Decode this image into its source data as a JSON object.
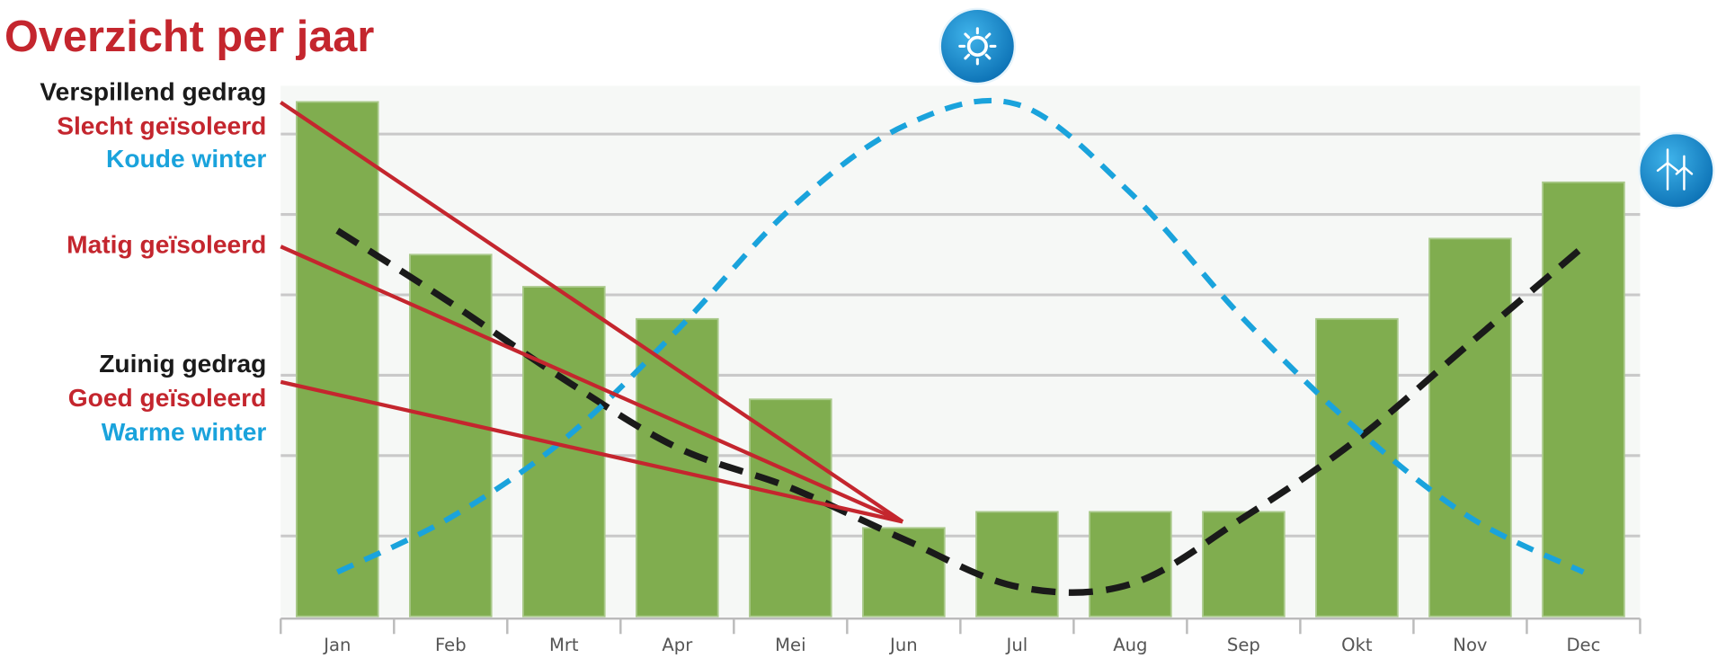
{
  "chart_data": {
    "type": "bar",
    "title": "Overzicht per jaar",
    "annotations": [
      {
        "text": "Verspillend gedrag",
        "color": "#1a1a1a"
      },
      {
        "text": "Slecht geïsoleerd",
        "color": "#c4262e"
      },
      {
        "text": "Koude winter",
        "color": "#1aa3dc"
      },
      {
        "text": "Matig geïsoleerd",
        "color": "#c4262e"
      },
      {
        "text": "Zuinig gedrag",
        "color": "#1a1a1a"
      },
      {
        "text": "Goed geïsoleerd",
        "color": "#c4262e"
      },
      {
        "text": "Warme winter",
        "color": "#1aa3dc"
      }
    ],
    "categories": [
      "Jan",
      "Feb",
      "Mrt",
      "Apr",
      "Mei",
      "Jun",
      "Jul",
      "Aug",
      "Sep",
      "Okt",
      "Nov",
      "Dec"
    ],
    "values": [
      6.4,
      4.5,
      4.1,
      3.7,
      2.7,
      1.1,
      1.3,
      1.3,
      1.3,
      3.7,
      4.7,
      5.4
    ],
    "color": "#80ad4f",
    "lines": [
      {
        "color": "#1a1a1a",
        "values": [
          4.8,
          3.9,
          2.95,
          2.1,
          1.6,
          0.96,
          0.37,
          0.4,
          1.23,
          2.2,
          3.4,
          4.6
        ]
      },
      {
        "color": "#1aa3dc",
        "values": [
          0.55,
          1.23,
          2.2,
          3.56,
          5.07,
          6.1,
          6.37,
          5.27,
          3.7,
          2.33,
          1.23,
          0.55
        ]
      }
    ],
    "ylim": [
      0,
      6.6
    ],
    "yticks": [
      1,
      2,
      3,
      4,
      5,
      6
    ],
    "grid": true
  }
}
